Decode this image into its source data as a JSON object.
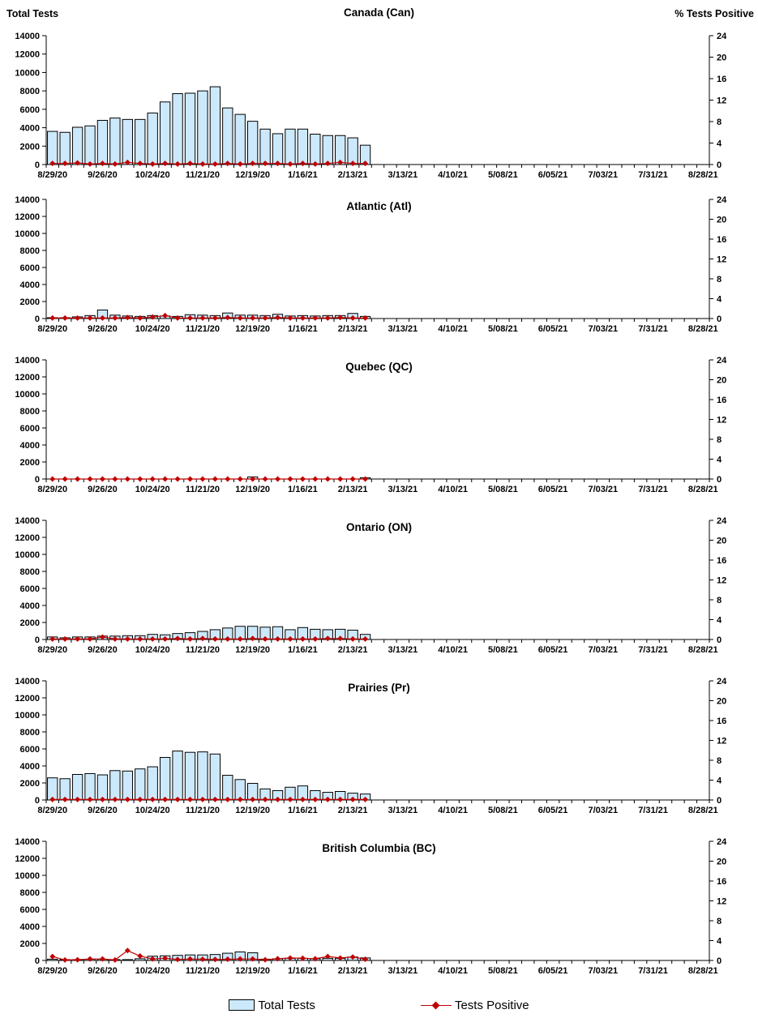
{
  "axes": {
    "left_label": "Total Tests",
    "right_label": "% Tests Positive",
    "left_max": 14000,
    "left_step": 2000,
    "right_max": 24,
    "right_step": 4,
    "total_weeks": 53,
    "x_label_every": 4,
    "x_tick_labels": [
      "8/29/20",
      "9/26/20",
      "10/24/20",
      "11/21/20",
      "12/19/20",
      "1/16/21",
      "2/13/21",
      "3/13/21",
      "4/10/21",
      "5/08/21",
      "6/05/21",
      "7/03/21",
      "7/31/21",
      "8/28/21"
    ]
  },
  "legend": {
    "total_tests": "Total Tests",
    "tests_positive": "Tests Positive"
  },
  "colors": {
    "bar_fill": "#cce9fc",
    "bar_border": "#000000",
    "line": "#c00000"
  },
  "chart_data": [
    {
      "type": "bar+line",
      "region": "Canada",
      "title": "Canada (Can)",
      "x_week_dates": [
        "8/29/20",
        "9/5/20",
        "9/12/20",
        "9/19/20",
        "9/26/20",
        "10/3/20",
        "10/10/20",
        "10/17/20",
        "10/24/20",
        "10/31/20",
        "11/7/20",
        "11/14/20",
        "11/21/20",
        "11/28/20",
        "12/5/20",
        "12/12/20",
        "12/19/20",
        "12/26/20",
        "1/2/21",
        "1/9/21",
        "1/16/21",
        "1/23/21",
        "1/30/21",
        "2/6/21",
        "2/13/21",
        "2/20/21"
      ],
      "total_tests": [
        3600,
        3500,
        4050,
        4200,
        4800,
        5050,
        4900,
        4900,
        5600,
        6800,
        7700,
        7750,
        8000,
        8450,
        6150,
        5450,
        4700,
        3850,
        3350,
        3850,
        3850,
        3300,
        3150,
        3150,
        2900,
        2100
      ],
      "pct_positive": [
        0.2,
        0.2,
        0.3,
        0.1,
        0.2,
        0.1,
        0.4,
        0.2,
        0.1,
        0.2,
        0.1,
        0.2,
        0.1,
        0.1,
        0.2,
        0.1,
        0.2,
        0.2,
        0.2,
        0.1,
        0.2,
        0.1,
        0.2,
        0.4,
        0.2,
        0.2
      ]
    },
    {
      "type": "bar+line",
      "region": "Atlantic",
      "title": "Atlantic (Atl)",
      "total_tests": [
        100,
        100,
        200,
        350,
        1000,
        400,
        300,
        250,
        350,
        300,
        250,
        450,
        400,
        350,
        650,
        400,
        400,
        350,
        500,
        300,
        350,
        300,
        350,
        350,
        600,
        250
      ],
      "pct_positive": [
        0.1,
        0.1,
        0.1,
        0.1,
        0.1,
        0.1,
        0.2,
        0.1,
        0.3,
        0.6,
        0.1,
        0.1,
        0.1,
        0.1,
        0.2,
        0.1,
        0.1,
        0.1,
        0.2,
        0.1,
        0.1,
        0.1,
        0.1,
        0.2,
        0.1,
        0.1
      ]
    },
    {
      "type": "bar+line",
      "region": "Quebec",
      "title": "Quebec (QC)",
      "total_tests": [
        0,
        0,
        0,
        0,
        0,
        0,
        0,
        0,
        0,
        0,
        0,
        0,
        0,
        0,
        0,
        0,
        250,
        0,
        0,
        0,
        0,
        0,
        0,
        0,
        0,
        150
      ],
      "pct_positive": [
        0,
        0,
        0,
        0,
        0,
        0,
        0,
        0,
        0,
        0,
        0,
        0,
        0,
        0,
        0,
        0,
        0,
        0,
        0,
        0,
        0,
        0,
        0,
        0,
        0,
        0
      ]
    },
    {
      "type": "bar+line",
      "region": "Ontario",
      "title": "Ontario (ON)",
      "total_tests": [
        300,
        200,
        300,
        300,
        400,
        400,
        450,
        450,
        600,
        550,
        700,
        800,
        950,
        1150,
        1350,
        1550,
        1550,
        1450,
        1500,
        1150,
        1400,
        1200,
        1150,
        1200,
        1100,
        600
      ],
      "pct_positive": [
        0.1,
        0.1,
        0.1,
        0.1,
        0.5,
        0.1,
        0.1,
        0.1,
        0.1,
        0.1,
        0.2,
        0.1,
        0.2,
        0.1,
        0.1,
        0.1,
        0.2,
        0.1,
        0.1,
        0.1,
        0.1,
        0.1,
        0.2,
        0.2,
        0.1,
        0.1
      ]
    },
    {
      "type": "bar+line",
      "region": "Prairies",
      "title": "Prairies (Pr)",
      "total_tests": [
        2600,
        2500,
        3000,
        3100,
        2950,
        3450,
        3400,
        3650,
        3900,
        5000,
        5750,
        5600,
        5650,
        5400,
        2900,
        2400,
        1950,
        1300,
        1100,
        1500,
        1650,
        1100,
        900,
        1000,
        800,
        700
      ],
      "pct_positive": [
        0.1,
        0.1,
        0.1,
        0.1,
        0.1,
        0.1,
        0.1,
        0.1,
        0.1,
        0.1,
        0.1,
        0.1,
        0.1,
        0.1,
        0.1,
        0.1,
        0.1,
        0.1,
        0.1,
        0.1,
        0.1,
        0.1,
        0.1,
        0.1,
        0.1,
        0.1
      ]
    },
    {
      "type": "bar+line",
      "region": "British Columbia",
      "title": "British Columbia (BC)",
      "total_tests": [
        150,
        100,
        100,
        150,
        150,
        100,
        100,
        200,
        500,
        550,
        600,
        650,
        650,
        700,
        850,
        1000,
        900,
        150,
        200,
        250,
        250,
        200,
        250,
        250,
        400,
        300
      ],
      "pct_positive": [
        0.8,
        0.1,
        0.15,
        0.3,
        0.3,
        0.1,
        2.0,
        0.9,
        0.3,
        0.45,
        0.2,
        0.3,
        0.25,
        0.2,
        0.25,
        0.3,
        0.3,
        0.15,
        0.35,
        0.5,
        0.45,
        0.35,
        0.8,
        0.5,
        0.7,
        0.25
      ]
    }
  ]
}
